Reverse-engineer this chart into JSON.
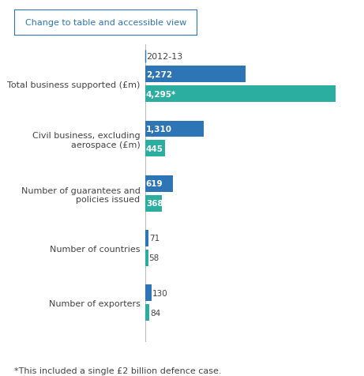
{
  "categories": [
    "Total business supported (£m)",
    "Civil business, excluding\naerospace (£m)",
    "Number of guarantees and\npolicies issued",
    "Number of countries",
    "Number of exporters"
  ],
  "values_2012": [
    2272,
    1310,
    619,
    71,
    130
  ],
  "values_2013": [
    4295,
    445,
    368,
    58,
    84
  ],
  "labels_2012": [
    "2,272",
    "1,310",
    "619",
    "71",
    "130"
  ],
  "labels_2013": [
    "4,295*",
    "445",
    "368",
    "58",
    "84"
  ],
  "color_2012": "#2E75B6",
  "color_2013": "#2BAEA0",
  "legend_label_2012": "2012-13",
  "max_value": 4700,
  "footnote": "*This included a single £2 billion defence case.",
  "button_text": "Change to table and accessible view",
  "background_color": "#ffffff",
  "bar_height": 0.3,
  "bar_gap": 0.06,
  "label_inside_threshold": 200
}
